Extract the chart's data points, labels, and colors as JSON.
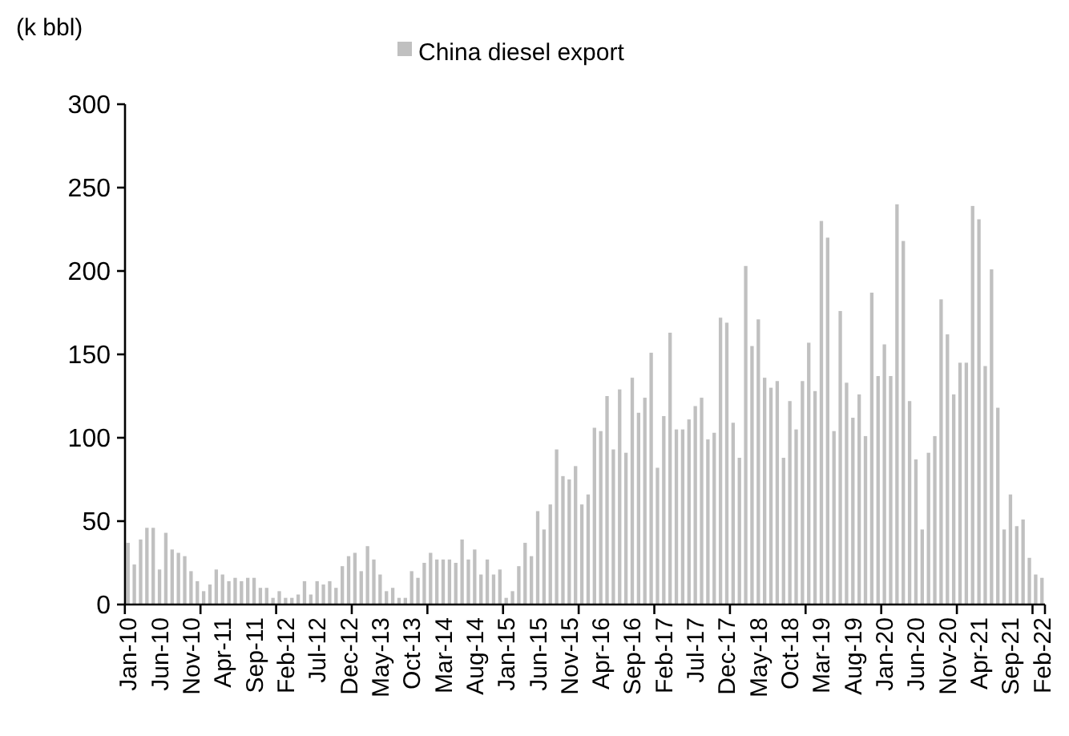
{
  "chart_data": {
    "type": "bar",
    "ylabel": "(k bbl)",
    "legend": "top",
    "ylim": [
      0,
      300
    ],
    "yticks": [
      0,
      50,
      100,
      150,
      200,
      250,
      300
    ],
    "categories": [
      "Jan-10",
      null,
      null,
      null,
      null,
      "Jun-10",
      null,
      null,
      null,
      null,
      "Nov-10",
      null,
      null,
      null,
      null,
      "Apr-11",
      null,
      null,
      null,
      null,
      "Sep-11",
      null,
      null,
      null,
      null,
      "Feb-12",
      null,
      null,
      null,
      null,
      "Jul-12",
      null,
      null,
      null,
      null,
      "Dec-12",
      null,
      null,
      null,
      null,
      "May-13",
      null,
      null,
      null,
      null,
      "Oct-13",
      null,
      null,
      null,
      null,
      "Mar-14",
      null,
      null,
      null,
      null,
      "Aug-14",
      null,
      null,
      null,
      null,
      "Jan-15",
      null,
      null,
      null,
      null,
      "Jun-15",
      null,
      null,
      null,
      null,
      "Nov-15",
      null,
      null,
      null,
      null,
      "Apr-16",
      null,
      null,
      null,
      null,
      "Sep-16",
      null,
      null,
      null,
      null,
      "Feb-17",
      null,
      null,
      null,
      null,
      "Jul-17",
      null,
      null,
      null,
      null,
      "Dec-17",
      null,
      null,
      null,
      null,
      "May-18",
      null,
      null,
      null,
      null,
      "Oct-18",
      null,
      null,
      null,
      null,
      "Mar-19",
      null,
      null,
      null,
      null,
      "Aug-19",
      null,
      null,
      null,
      null,
      "Jan-20",
      null,
      null,
      null,
      null,
      "Jun-20",
      null,
      null,
      null,
      null,
      "Nov-20",
      null,
      null,
      null,
      null,
      "Apr-21",
      null,
      null,
      null,
      null,
      "Sep-21",
      null,
      null,
      null,
      null,
      "Feb-22"
    ],
    "series": [
      {
        "name": "China diesel export",
        "color": "#c0c0c0",
        "values": [
          37,
          24,
          39,
          46,
          46,
          21,
          43,
          33,
          31,
          29,
          20,
          14,
          8,
          12,
          21,
          18,
          14,
          16,
          14,
          16,
          16,
          10,
          10,
          4,
          8,
          4,
          4,
          6,
          14,
          6,
          14,
          12,
          14,
          10,
          23,
          29,
          31,
          20,
          35,
          27,
          18,
          8,
          10,
          4,
          4,
          20,
          16,
          25,
          31,
          27,
          27,
          27,
          25,
          39,
          27,
          33,
          18,
          27,
          18,
          21,
          4,
          8,
          23,
          37,
          29,
          56,
          45,
          60,
          93,
          77,
          75,
          83,
          60,
          66,
          106,
          104,
          125,
          93,
          129,
          91,
          136,
          115,
          124,
          151,
          82,
          113,
          163,
          105,
          105,
          111,
          119,
          124,
          99,
          103,
          172,
          169,
          109,
          88,
          203,
          155,
          171,
          136,
          130,
          134,
          88,
          122,
          105,
          134,
          157,
          128,
          230,
          220,
          104,
          176,
          133,
          112,
          126,
          101,
          187,
          137,
          156,
          137,
          240,
          218,
          122,
          87,
          45,
          91,
          101,
          183,
          162,
          126,
          145,
          145,
          239,
          231,
          143,
          201,
          118,
          45,
          66,
          47,
          51,
          28,
          18,
          16
        ]
      }
    ]
  }
}
